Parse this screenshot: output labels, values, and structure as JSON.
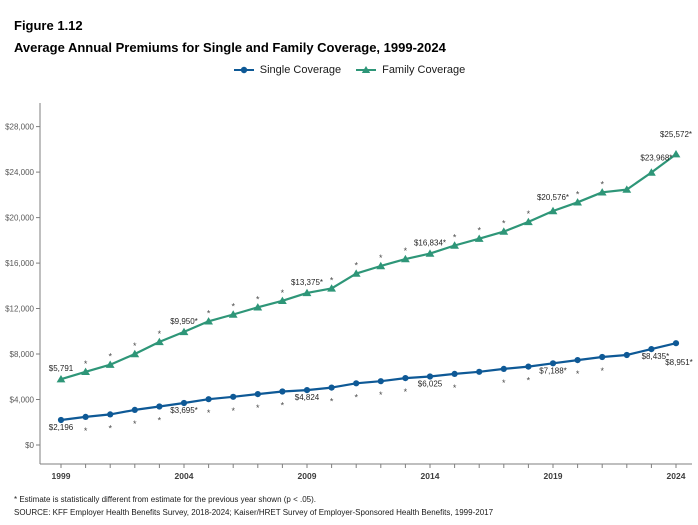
{
  "figure": {
    "label": "Figure 1.12",
    "title": "Average Annual Premiums for Single and Family Coverage, 1999-2024"
  },
  "legend": {
    "items": [
      {
        "label": "Single Coverage",
        "color": "#0e5996",
        "marker": "circle"
      },
      {
        "label": "Family Coverage",
        "color": "#2e9678",
        "marker": "triangle"
      }
    ]
  },
  "footnote": "* Estimate is statistically different from estimate for the previous year shown (p < .05).",
  "source": "SOURCE: KFF Employer Health Benefits Survey, 2018-2024; Kaiser/HRET Survey of Employer-Sponsored Health Benefits, 1999-2017",
  "colors": {
    "single": "#0e5996",
    "family": "#2e9678",
    "axis": "#7f7f7f",
    "y_tick_label": "#595959",
    "x_tick_label": "#3d3d3d",
    "point_label": "#262626",
    "star": "#4d4d4d"
  },
  "chart_data": {
    "type": "line",
    "title": "Average Annual Premiums for Single and Family Coverage, 1999-2024",
    "xlabel": "",
    "ylabel": "",
    "x": [
      1999,
      2000,
      2001,
      2002,
      2003,
      2004,
      2005,
      2006,
      2007,
      2008,
      2009,
      2010,
      2011,
      2012,
      2013,
      2014,
      2015,
      2016,
      2017,
      2018,
      2019,
      2020,
      2021,
      2022,
      2023,
      2024
    ],
    "x_axis_label_years": [
      1999,
      2004,
      2009,
      2014,
      2019,
      2024
    ],
    "ylim": [
      0,
      28000
    ],
    "y_tick_values": [
      0,
      4000,
      8000,
      12000,
      16000,
      20000,
      24000,
      28000
    ],
    "y_tick_labels": [
      "$0",
      "$4,000",
      "$8,000",
      "$12,000",
      "$16,000",
      "$20,000",
      "$24,000",
      "$28,000"
    ],
    "grid": false,
    "legend_position": "top-center",
    "series": [
      {
        "name": "Single Coverage",
        "marker": "circle",
        "color": "#0e5996",
        "values": [
          2196,
          2471,
          2689,
          3083,
          3383,
          3695,
          4024,
          4242,
          4479,
          4704,
          4824,
          5049,
          5429,
          5615,
          5884,
          6025,
          6251,
          6435,
          6690,
          6896,
          7188,
          7470,
          7739,
          7911,
          8435,
          8951
        ],
        "starred_years": [
          2000,
          2001,
          2002,
          2003,
          2005,
          2006,
          2007,
          2008,
          2010,
          2011,
          2012,
          2013,
          2015,
          2017,
          2018,
          2020,
          2021
        ],
        "point_labels": [
          {
            "year": 1999,
            "text": "$2,196"
          },
          {
            "year": 2004,
            "text": "$3,695*"
          },
          {
            "year": 2009,
            "text": "$4,824"
          },
          {
            "year": 2014,
            "text": "$6,025"
          },
          {
            "year": 2019,
            "text": "$7,188*"
          },
          {
            "year": 2023,
            "text": "$8,435*"
          },
          {
            "year": 2024,
            "text": "$8,951*"
          }
        ]
      },
      {
        "name": "Family Coverage",
        "marker": "triangle",
        "color": "#2e9678",
        "values": [
          5791,
          6438,
          7061,
          8003,
          9068,
          9950,
          10880,
          11480,
          12106,
          12680,
          13375,
          13770,
          15073,
          15745,
          16351,
          16834,
          17545,
          18142,
          18764,
          19616,
          20576,
          21342,
          22221,
          22463,
          23968,
          25572
        ],
        "starred_years": [
          2000,
          2001,
          2002,
          2003,
          2005,
          2006,
          2007,
          2008,
          2010,
          2011,
          2012,
          2013,
          2015,
          2016,
          2017,
          2018,
          2020,
          2021
        ],
        "point_labels": [
          {
            "year": 1999,
            "text": "$5,791"
          },
          {
            "year": 2004,
            "text": "$9,950*"
          },
          {
            "year": 2009,
            "text": "$13,375*"
          },
          {
            "year": 2014,
            "text": "$16,834*"
          },
          {
            "year": 2019,
            "text": "$20,576*"
          },
          {
            "year": 2023,
            "text": "$23,968*"
          },
          {
            "year": 2024,
            "text": "$25,572*"
          }
        ]
      }
    ]
  }
}
